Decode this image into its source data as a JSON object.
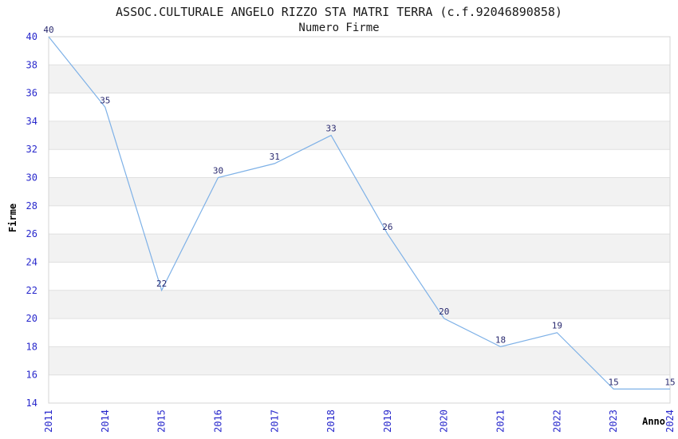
{
  "chart_data": {
    "type": "line",
    "title": "ASSOC.CULTURALE ANGELO RIZZO STA MATRI TERRA (c.f.92046890858)",
    "subtitle": "Numero Firme",
    "xlabel": "Anno",
    "ylabel": "Firme",
    "x": [
      "2011",
      "2014",
      "2015",
      "2016",
      "2017",
      "2018",
      "2019",
      "2020",
      "2021",
      "2022",
      "2023",
      "2024"
    ],
    "values": [
      40,
      35,
      22,
      30,
      31,
      33,
      26,
      20,
      18,
      19,
      15,
      15
    ],
    "ylim": [
      14,
      40
    ],
    "ytick_step": 2,
    "legend": "none",
    "grid": "horizontal alternating bands",
    "colors": {
      "line": "#7eb1e7",
      "tick_label": "#2828cc",
      "data_label": "#2a2a70",
      "band": "#f2f2f2",
      "gridline": "#e0e0e0",
      "frame": "#d4d4d4",
      "title": "#1a1a1a",
      "axis_label": "#000000",
      "background": "#ffffff"
    }
  }
}
